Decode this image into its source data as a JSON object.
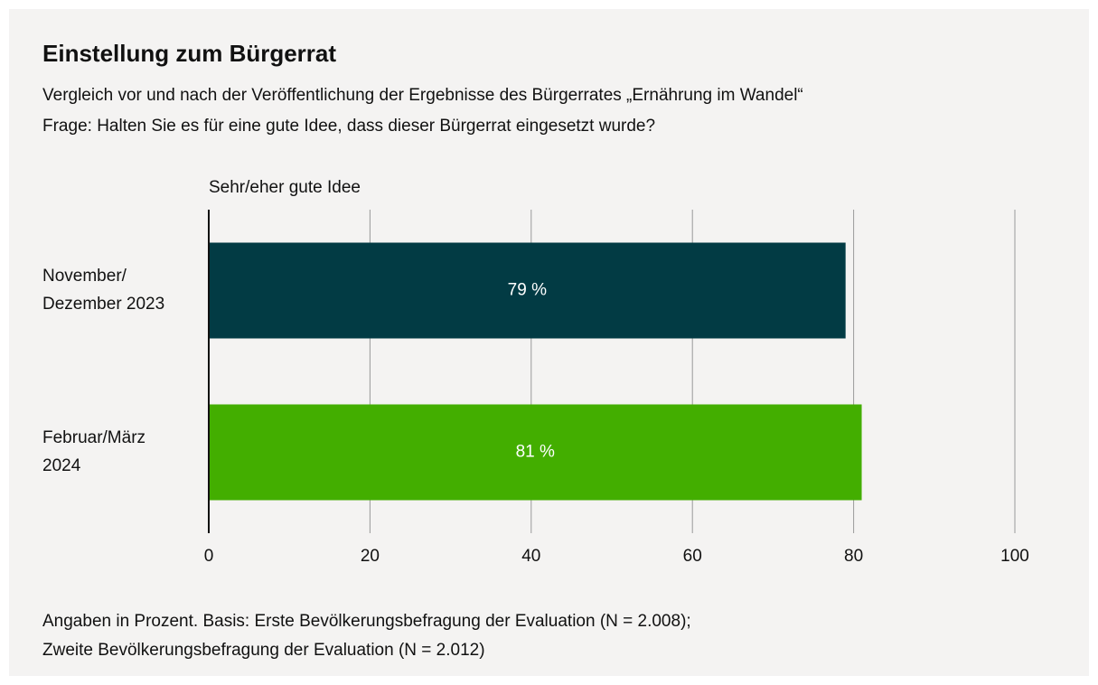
{
  "chart_data": {
    "type": "bar",
    "orientation": "horizontal",
    "title": "Einstellung zum Bürgerrat",
    "subtitle": [
      "Vergleich vor und nach der Veröffentlichung der Ergebnisse des Bürgerrates „Ernährung im Wandel“",
      "Frage: Halten Sie es für eine gute Idee, dass dieser Bürgerrat eingesetzt wurde?"
    ],
    "categories": [
      [
        "November/",
        "Dezember 2023"
      ],
      [
        "Februar/März",
        "2024"
      ]
    ],
    "series": [
      {
        "name": "Sehr/eher gute Idee",
        "colors": [
          "#023b44",
          "#43ae00"
        ],
        "values": [
          79,
          81
        ],
        "value_labels": [
          "79 %",
          "81 %"
        ]
      }
    ],
    "xlim": [
      0,
      100
    ],
    "xticks": [
      0,
      20,
      40,
      60,
      80,
      100
    ],
    "grid": true,
    "footnote": [
      "Angaben in Prozent. Basis: Erste Bevölkerungsbefragung der Evaluation (N = 2.008);",
      "Zweite Bevölkerungsbefragung der Evaluation (N = 2.012)"
    ]
  }
}
